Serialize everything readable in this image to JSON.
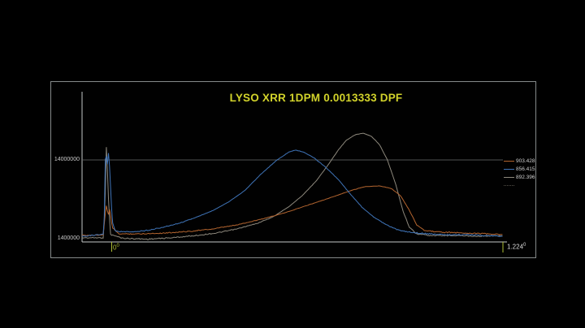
{
  "window": {
    "background": "#000000"
  },
  "panel": {
    "border_color": "#858a8a",
    "background": "#010101"
  },
  "chart_data": {
    "type": "line",
    "title": "LYSO XRR 1DPM 0.0013333 DPF",
    "title_color": "#d2d32b",
    "grid": "single horizontal gridline at 14000000",
    "legend_position": "right inside plot",
    "x_axis": {
      "unit": "degrees",
      "min": -0.091,
      "max": 1.224,
      "start_label": "0",
      "end_label": "1.224",
      "sup": "0",
      "start_label_color": "#aebe34",
      "end_label_color": "#d9d9d9",
      "tick_color": "#aebe34"
    },
    "y_axis": {
      "scale": "log",
      "gridline_value": 14000000,
      "gridline_label": "14000000",
      "axis_value": 1400000,
      "axis_label": "1400000",
      "label_color": "#c9c9c9",
      "axis_color": "#c4c8c8",
      "gridline_color": "#6a6e6e"
    },
    "legend": {
      "entries": [
        {
          "label": "903.428",
          "color": "#b4652f",
          "dashed": false
        },
        {
          "label": "856.415",
          "color": "#3f74b8",
          "dashed": false
        },
        {
          "label": "892.396",
          "color": "#8e897d",
          "dashed": false
        },
        {
          "label": "",
          "color": "#55524a",
          "dashed": true
        }
      ]
    },
    "series": [
      {
        "name": "892.396",
        "color": "#8e897d",
        "noise": 1.5,
        "points": [
          [
            -0.091,
            1540000
          ],
          [
            -0.025,
            1540000
          ],
          [
            -0.02,
            3600000
          ],
          [
            -0.015,
            24300000
          ],
          [
            -0.01,
            5700000
          ],
          [
            -0.003,
            1690000
          ],
          [
            0.036,
            1520000
          ],
          [
            0.112,
            1480000
          ],
          [
            0.188,
            1540000
          ],
          [
            0.264,
            1640000
          ],
          [
            0.328,
            1760000
          ],
          [
            0.391,
            1970000
          ],
          [
            0.455,
            2310000
          ],
          [
            0.505,
            2780000
          ],
          [
            0.556,
            3750000
          ],
          [
            0.599,
            5180000
          ],
          [
            0.64,
            7700000
          ],
          [
            0.676,
            11900000
          ],
          [
            0.709,
            18500000
          ],
          [
            0.734,
            24300000
          ],
          [
            0.762,
            28600000
          ],
          [
            0.787,
            29900000
          ],
          [
            0.813,
            27300000
          ],
          [
            0.838,
            21700000
          ],
          [
            0.863,
            14000000
          ],
          [
            0.889,
            7000000
          ],
          [
            0.912,
            3260000
          ],
          [
            0.932,
            2060000
          ],
          [
            0.955,
            1720000
          ],
          [
            1.001,
            1640000
          ],
          [
            1.077,
            1640000
          ],
          [
            1.153,
            1610000
          ],
          [
            1.224,
            1640000
          ]
        ]
      },
      {
        "name": "903.428",
        "color": "#b4652f",
        "noise": 1.6,
        "points": [
          [
            -0.091,
            1640000
          ],
          [
            -0.025,
            1680000
          ],
          [
            -0.02,
            2790000
          ],
          [
            -0.015,
            3950000
          ],
          [
            -0.01,
            2860000
          ],
          [
            -0.005,
            3520000
          ],
          [
            0.003,
            2060000
          ],
          [
            0.023,
            1720000
          ],
          [
            0.086,
            1720000
          ],
          [
            0.163,
            1760000
          ],
          [
            0.239,
            1840000
          ],
          [
            0.315,
            1970000
          ],
          [
            0.391,
            2210000
          ],
          [
            0.467,
            2600000
          ],
          [
            0.543,
            3130000
          ],
          [
            0.62,
            3950000
          ],
          [
            0.696,
            4970000
          ],
          [
            0.747,
            5840000
          ],
          [
            0.792,
            6560000
          ],
          [
            0.836,
            6710000
          ],
          [
            0.874,
            6270000
          ],
          [
            0.904,
            5090000
          ],
          [
            0.93,
            3440000
          ],
          [
            0.955,
            2210000
          ],
          [
            0.98,
            1880000
          ],
          [
            1.039,
            1800000
          ],
          [
            1.115,
            1760000
          ],
          [
            1.178,
            1720000
          ],
          [
            1.224,
            1680000
          ]
        ]
      },
      {
        "name": "856.415",
        "color": "#3f74b8",
        "noise": 1.7,
        "points": [
          [
            -0.091,
            1610000
          ],
          [
            -0.023,
            1690000
          ],
          [
            -0.018,
            21200000
          ],
          [
            -0.013,
            11400000
          ],
          [
            -0.008,
            18500000
          ],
          [
            0.003,
            2430000
          ],
          [
            0.013,
            1850000
          ],
          [
            0.061,
            1810000
          ],
          [
            0.112,
            1900000
          ],
          [
            0.163,
            2080000
          ],
          [
            0.213,
            2330000
          ],
          [
            0.264,
            2740000
          ],
          [
            0.315,
            3300000
          ],
          [
            0.366,
            4250000
          ],
          [
            0.417,
            5870000
          ],
          [
            0.467,
            9300000
          ],
          [
            0.518,
            14000000
          ],
          [
            0.556,
            17600000
          ],
          [
            0.576,
            18500000
          ],
          [
            0.599,
            17600000
          ],
          [
            0.632,
            15000000
          ],
          [
            0.67,
            11400000
          ],
          [
            0.709,
            8060000
          ],
          [
            0.747,
            5330000
          ],
          [
            0.785,
            3600000
          ],
          [
            0.823,
            2720000
          ],
          [
            0.861,
            2210000
          ],
          [
            0.899,
            1900000
          ],
          [
            0.937,
            1800000
          ],
          [
            0.988,
            1720000
          ],
          [
            1.051,
            1680000
          ],
          [
            1.115,
            1680000
          ],
          [
            1.178,
            1640000
          ],
          [
            1.224,
            1610000
          ]
        ]
      }
    ]
  }
}
